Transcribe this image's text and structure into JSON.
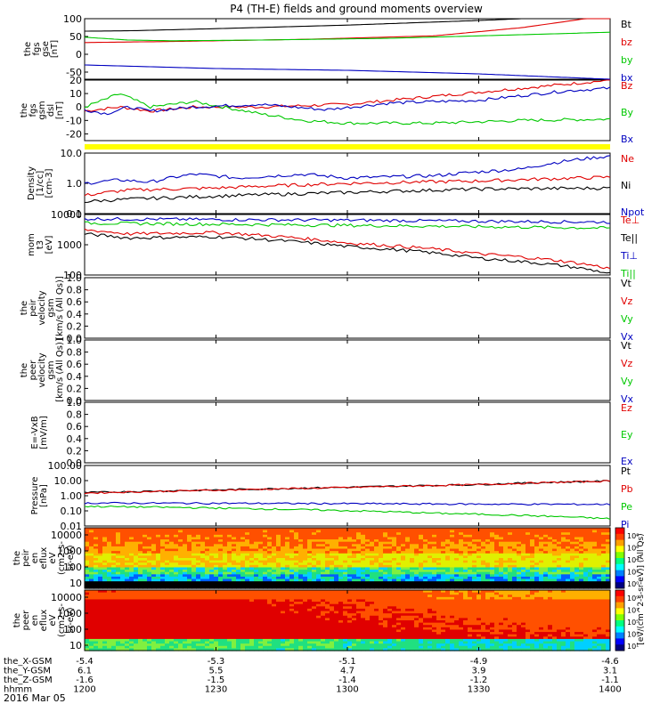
{
  "title": "P4 (TH-E) fields and ground moments overview",
  "date": "2016 Mar 05",
  "colors": {
    "black": "#000000",
    "red": "#e00000",
    "green": "#00c800",
    "blue": "#0000c0",
    "yellow": "#ffff00"
  },
  "chart_data": [
    {
      "type": "line",
      "ylabel": [
        "the",
        "fgs",
        "gse",
        "[nT]"
      ],
      "ylim": [
        -70,
        100
      ],
      "yticks": [
        100,
        50,
        0,
        -50
      ],
      "legend": [
        {
          "name": "Bt",
          "color": "black"
        },
        {
          "name": "bz",
          "color": "red"
        },
        {
          "name": "by",
          "color": "green"
        },
        {
          "name": "bx",
          "color": "blue"
        }
      ],
      "series": [
        {
          "name": "Bt",
          "color": "black",
          "x": [
            0,
            10,
            30,
            60,
            90,
            120
          ],
          "y": [
            65,
            66,
            72,
            82,
            95,
            110
          ]
        },
        {
          "name": "bz",
          "color": "red",
          "x": [
            0,
            20,
            50,
            80,
            100,
            120
          ],
          "y": [
            33,
            36,
            42,
            52,
            75,
            110
          ]
        },
        {
          "name": "by",
          "color": "green",
          "x": [
            0,
            10,
            20,
            40,
            70,
            100,
            120
          ],
          "y": [
            48,
            40,
            38,
            40,
            45,
            55,
            62
          ]
        },
        {
          "name": "bx",
          "color": "blue",
          "x": [
            0,
            15,
            30,
            60,
            90,
            110,
            120
          ],
          "y": [
            -30,
            -35,
            -40,
            -45,
            -55,
            -65,
            -70
          ]
        }
      ]
    },
    {
      "type": "line",
      "ylabel": [
        "the",
        "fgs",
        "gsm",
        "dsl",
        "[nT]"
      ],
      "ylim": [
        -25,
        20
      ],
      "yticks": [
        20,
        10,
        0,
        -10,
        -20
      ],
      "legend": [
        {
          "name": "Bz",
          "color": "red"
        },
        {
          "name": "By",
          "color": "green"
        },
        {
          "name": "Bx",
          "color": "blue"
        }
      ],
      "series": [
        {
          "name": "Bz",
          "color": "red",
          "x": [
            0,
            8,
            15,
            25,
            40,
            60,
            80,
            100,
            120
          ],
          "y": [
            -3,
            0,
            -3,
            0,
            0,
            2,
            8,
            14,
            20
          ]
        },
        {
          "name": "By",
          "color": "green",
          "x": [
            0,
            5,
            8,
            15,
            25,
            40,
            50,
            60,
            80,
            100,
            120
          ],
          "y": [
            0,
            6,
            10,
            0,
            4,
            -5,
            -10,
            -12,
            -12,
            -10,
            -9
          ]
        },
        {
          "name": "Bx",
          "color": "blue",
          "x": [
            0,
            5,
            10,
            15,
            25,
            40,
            55,
            70,
            90,
            110,
            120
          ],
          "y": [
            -2,
            -5,
            0,
            -3,
            0,
            2,
            -2,
            3,
            5,
            12,
            14
          ]
        }
      ]
    },
    {
      "type": "line",
      "ylabel": [
        "Density",
        "[1/cc]",
        "[cm-3]"
      ],
      "yscale": "log",
      "ylim": [
        0.1,
        10
      ],
      "ytick_labels": [
        "10.0",
        "1.0",
        "0.1"
      ],
      "legend": [
        {
          "name": "Ne",
          "color": "red"
        },
        {
          "name": "Ni",
          "color": "black"
        },
        {
          "name": "Npot",
          "color": "blue"
        }
      ],
      "series": [
        {
          "name": "Npot",
          "color": "blue",
          "x": [
            0,
            8,
            15,
            25,
            35,
            50,
            60,
            80,
            100,
            120
          ],
          "y": [
            1.0,
            1.3,
            1.1,
            2.0,
            1.5,
            2.0,
            1.5,
            1.8,
            3.0,
            8.0
          ]
        },
        {
          "name": "Ne",
          "color": "red",
          "x": [
            0,
            10,
            30,
            60,
            90,
            120
          ],
          "y": [
            0.4,
            0.6,
            0.7,
            1.0,
            1.2,
            1.6
          ]
        },
        {
          "name": "Ni",
          "color": "black",
          "x": [
            0,
            10,
            30,
            60,
            90,
            120
          ],
          "y": [
            0.25,
            0.3,
            0.38,
            0.5,
            0.65,
            0.7
          ]
        }
      ]
    },
    {
      "type": "line",
      "ylabel": [
        "mom",
        "t3",
        "[eV]"
      ],
      "yscale": "log",
      "ylim": [
        90,
        12000
      ],
      "ytick_labels": [
        "10000",
        "1000",
        "100"
      ],
      "legend": [
        {
          "name": "Te⊥",
          "color": "red"
        },
        {
          "name": "Te||",
          "color": "black"
        },
        {
          "name": "Ti⊥",
          "color": "blue"
        },
        {
          "name": "Ti||",
          "color": "green"
        }
      ],
      "series": [
        {
          "name": "Ti⊥",
          "color": "blue",
          "x": [
            0,
            30,
            60,
            90,
            120
          ],
          "y": [
            8500,
            8000,
            7600,
            7000,
            6500
          ]
        },
        {
          "name": "Ti||",
          "color": "green",
          "x": [
            0,
            30,
            60,
            90,
            120
          ],
          "y": [
            6000,
            5500,
            5000,
            4500,
            4000
          ]
        },
        {
          "name": "Te⊥",
          "color": "red",
          "x": [
            0,
            10,
            30,
            60,
            90,
            120
          ],
          "y": [
            3500,
            2500,
            2800,
            1200,
            500,
            150
          ]
        },
        {
          "name": "Te||",
          "color": "black",
          "x": [
            0,
            10,
            30,
            60,
            90,
            120
          ],
          "y": [
            2500,
            1800,
            2000,
            900,
            350,
            100
          ]
        }
      ]
    },
    {
      "type": "line",
      "ylabel": [
        "the",
        "peir",
        "velocity",
        "gsm",
        "[km/s (All Qs)]"
      ],
      "ylim": [
        0,
        1
      ],
      "ytick_labels": [
        "1.0",
        "0.8",
        "0.6",
        "0.4",
        "0.2",
        "0.0"
      ],
      "legend": [
        {
          "name": "Vt",
          "color": "black"
        },
        {
          "name": "Vz",
          "color": "red"
        },
        {
          "name": "Vy",
          "color": "green"
        },
        {
          "name": "Vx",
          "color": "blue"
        }
      ],
      "series": []
    },
    {
      "type": "line",
      "ylabel": [
        "the",
        "peer",
        "velocity",
        "gsm",
        "[km/s (All Qs)]"
      ],
      "ylim": [
        0,
        1
      ],
      "ytick_labels": [
        "1.0",
        "0.8",
        "0.6",
        "0.4",
        "0.2",
        "0.0"
      ],
      "legend": [
        {
          "name": "Vt",
          "color": "black"
        },
        {
          "name": "Vz",
          "color": "red"
        },
        {
          "name": "Vy",
          "color": "green"
        },
        {
          "name": "Vx",
          "color": "blue"
        }
      ],
      "series": []
    },
    {
      "type": "line",
      "ylabel": [
        "E=-VxB",
        "[mV/m]"
      ],
      "ylim": [
        0,
        1
      ],
      "ytick_labels": [
        "1.0",
        "0.8",
        "0.6",
        "0.4",
        "0.2",
        "0.0"
      ],
      "legend": [
        {
          "name": "Ez",
          "color": "red"
        },
        {
          "name": "Ey",
          "color": "green"
        },
        {
          "name": "Ex",
          "color": "blue"
        }
      ],
      "series": []
    },
    {
      "type": "line",
      "ylabel": [
        "Pressure",
        "[nPa]"
      ],
      "yscale": "log",
      "ylim": [
        0.01,
        100
      ],
      "ytick_labels": [
        "100.00",
        "10.00",
        "1.00",
        "0.10",
        "0.01"
      ],
      "legend": [
        {
          "name": "Pt",
          "color": "black"
        },
        {
          "name": "Pb",
          "color": "red"
        },
        {
          "name": "Pe",
          "color": "green"
        },
        {
          "name": "Pi",
          "color": "blue"
        }
      ],
      "series": [
        {
          "name": "Pt",
          "color": "black",
          "x": [
            0,
            30,
            60,
            90,
            120
          ],
          "y": [
            1.6,
            2.4,
            3.6,
            5.5,
            9.5
          ]
        },
        {
          "name": "Pb",
          "color": "red",
          "x": [
            0,
            30,
            60,
            90,
            120
          ],
          "y": [
            1.5,
            2.3,
            3.5,
            5.4,
            9.3
          ]
        },
        {
          "name": "Pi",
          "color": "blue",
          "x": [
            0,
            30,
            60,
            90,
            120
          ],
          "y": [
            0.33,
            0.32,
            0.3,
            0.28,
            0.27
          ]
        },
        {
          "name": "Pe",
          "color": "green",
          "x": [
            0,
            20,
            50,
            80,
            110,
            120
          ],
          "y": [
            0.2,
            0.17,
            0.12,
            0.07,
            0.04,
            0.03
          ]
        }
      ]
    },
    {
      "type": "heatmap",
      "ylabel": [
        "the",
        "peir",
        "en",
        "eflux",
        "eV",
        "(cm2-s-",
        "sr-eV)"
      ],
      "yscale": "log",
      "ylim": [
        8,
        25000
      ],
      "ytick_labels": [
        "10000",
        "1000",
        "100",
        "10"
      ],
      "colorbar": {
        "label": "[eV/(cm^2-s-sr-eV)] (All Qs)",
        "tick_labels": [
          "10⁸",
          "10⁶",
          "10⁴",
          "10²",
          "10⁰"
        ]
      }
    },
    {
      "type": "heatmap",
      "ylabel": [
        "the",
        "peer",
        "en",
        "eflux",
        "eV",
        "(cm2-s-",
        "sr-eV)"
      ],
      "yscale": "log",
      "ylim": [
        6,
        20000
      ],
      "ytick_labels": [
        "10000",
        "1000",
        "100",
        "10"
      ],
      "colorbar": {
        "label": "[eV/(cm^2-s-sr-eV)] (All Qs)",
        "tick_labels": [
          "10⁹",
          "10⁷",
          "10⁵",
          "10³",
          "10¹"
        ]
      }
    }
  ],
  "xaxis": {
    "time_minutes": [
      0,
      30,
      60,
      90,
      120
    ],
    "rows": [
      {
        "label": "the_X-GSM",
        "values": [
          "-5.4",
          "-5.3",
          "-5.1",
          "-4.9",
          "-4.6"
        ]
      },
      {
        "label": "the_Y-GSM",
        "values": [
          "6.1",
          "5.5",
          "4.7",
          "3.9",
          "3.1"
        ]
      },
      {
        "label": "the_Z-GSM",
        "values": [
          "-1.6",
          "-1.5",
          "-1.4",
          "-1.2",
          "-1.1"
        ]
      },
      {
        "label": "hhmm",
        "values": [
          "1200",
          "1230",
          "1300",
          "1330",
          "1400"
        ]
      }
    ]
  }
}
